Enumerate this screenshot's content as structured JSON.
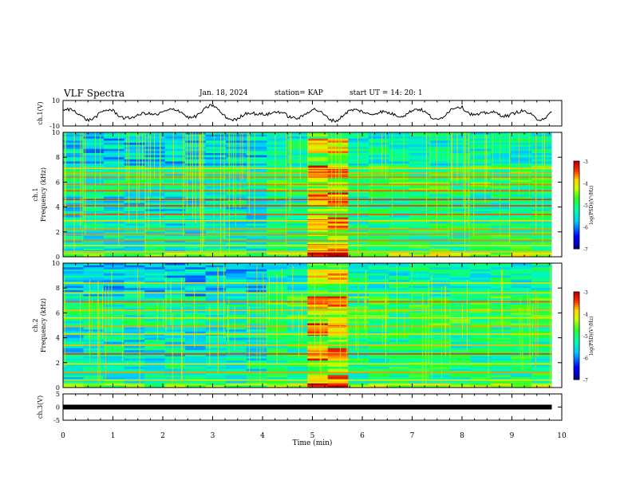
{
  "header": {
    "title": "VLF Spectra",
    "date": "Jan. 18, 2024",
    "station": "station= KAP",
    "start": "start  UT =   14: 20: 1"
  },
  "colors": {
    "spectrogram_background": "#2ec8a0",
    "colormap": [
      "#000080",
      "#0000ff",
      "#00c8ff",
      "#00ffaa",
      "#20ff20",
      "#c8ff00",
      "#ffd000",
      "#ff3000",
      "#c00000",
      "#ffffff"
    ]
  },
  "chart_data": [
    {
      "type": "line",
      "ylabel": "ch.1(V)",
      "ylim": [
        -10,
        10
      ],
      "yticks": [
        10,
        -10
      ],
      "xlim": [
        0,
        10
      ],
      "x_unit": "min",
      "description_series": "ch.1 waveform",
      "x": [
        0,
        0.5,
        1,
        1.5,
        2,
        2.5,
        3,
        3.5,
        4,
        4.5,
        5,
        5.5,
        6,
        6.5,
        7,
        7.5,
        8,
        8.5,
        9,
        9.5,
        9.8
      ],
      "y": [
        2,
        -3,
        1,
        -4,
        3,
        -2,
        4,
        -5,
        2,
        -3,
        1,
        -4,
        3,
        -2,
        2,
        -3,
        4,
        -2,
        1,
        -3,
        0
      ]
    },
    {
      "type": "heatmap",
      "ylabel": "ch.1\nFrequency (kHz)",
      "ylim": [
        0,
        10
      ],
      "yticks": [
        0,
        2,
        4,
        6,
        8,
        10
      ],
      "xlim": [
        0,
        10
      ],
      "colorbar": {
        "label": "log(PSD)(V²/Hz)",
        "range": [
          -7,
          -3
        ],
        "ticks": [
          -3,
          -4,
          -5,
          -6,
          -7
        ]
      }
    },
    {
      "type": "heatmap",
      "ylabel": "ch.2\nFrequency (kHz)",
      "ylim": [
        0,
        10
      ],
      "yticks": [
        0,
        2,
        4,
        6,
        8,
        10
      ],
      "xlim": [
        0,
        10
      ],
      "colorbar": {
        "label": "log(PSD)(V²/Hz)",
        "range": [
          -7,
          -3
        ],
        "ticks": [
          -3,
          -4,
          -5,
          -6,
          -7
        ]
      }
    },
    {
      "type": "line",
      "ylabel": "ch.3(V)",
      "ylim": [
        -5,
        5
      ],
      "yticks": [
        5,
        0,
        -5
      ],
      "xlim": [
        0,
        10
      ],
      "xlabel": "Time  (min)",
      "xticks": [
        0,
        1,
        2,
        3,
        4,
        5,
        6,
        7,
        8,
        9,
        10
      ],
      "x": [
        0,
        9.8
      ],
      "y": [
        0,
        0
      ]
    }
  ]
}
